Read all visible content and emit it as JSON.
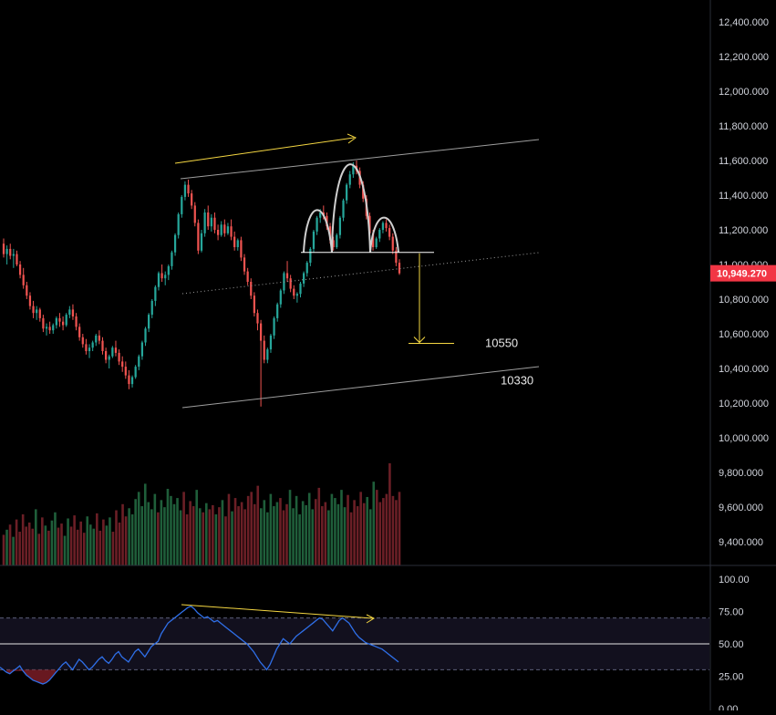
{
  "chart_data": [
    {
      "type": "candlestick",
      "title": "",
      "price_axis": {
        "ticks": [
          "12,400.000",
          "12,200.000",
          "12,000.000",
          "11,800.000",
          "11,600.000",
          "11,400.000",
          "11,200.000",
          "11,000.000",
          "10,800.000",
          "10,600.000",
          "10,400.000",
          "10,200.000",
          "10,000.000",
          "9,800.000",
          "9,600.000",
          "9,400.000"
        ],
        "tick_values": [
          12400,
          12200,
          12000,
          11800,
          11600,
          11400,
          11200,
          11000,
          10800,
          10600,
          10400,
          10200,
          10000,
          9800,
          9600,
          9400
        ],
        "range": [
          9300,
          12500
        ]
      },
      "last_price_label": "10,949.270",
      "last_price": 10949.27,
      "candles_ohlc": [
        [
          11120,
          11150,
          11040,
          11060
        ],
        [
          11060,
          11110,
          11000,
          11090
        ],
        [
          11090,
          11120,
          11030,
          11050
        ],
        [
          11050,
          11090,
          10980,
          11060
        ],
        [
          11060,
          11080,
          10990,
          11000
        ],
        [
          11000,
          11020,
          10920,
          10940
        ],
        [
          10940,
          10980,
          10860,
          10880
        ],
        [
          10880,
          10900,
          10800,
          10820
        ],
        [
          10820,
          10840,
          10740,
          10760
        ],
        [
          10760,
          10790,
          10690,
          10720
        ],
        [
          10720,
          10760,
          10680,
          10740
        ],
        [
          10740,
          10750,
          10670,
          10690
        ],
        [
          10690,
          10710,
          10610,
          10630
        ],
        [
          10630,
          10660,
          10590,
          10640
        ],
        [
          10640,
          10670,
          10600,
          10620
        ],
        [
          10620,
          10660,
          10600,
          10650
        ],
        [
          10650,
          10700,
          10630,
          10690
        ],
        [
          10690,
          10720,
          10640,
          10670
        ],
        [
          10670,
          10700,
          10620,
          10650
        ],
        [
          10650,
          10720,
          10640,
          10710
        ],
        [
          10710,
          10760,
          10690,
          10740
        ],
        [
          10740,
          10770,
          10680,
          10700
        ],
        [
          10700,
          10720,
          10620,
          10640
        ],
        [
          10640,
          10660,
          10560,
          10580
        ],
        [
          10580,
          10600,
          10520,
          10540
        ],
        [
          10540,
          10570,
          10480,
          10500
        ],
        [
          10500,
          10540,
          10460,
          10520
        ],
        [
          10520,
          10560,
          10500,
          10550
        ],
        [
          10550,
          10600,
          10530,
          10590
        ],
        [
          10590,
          10620,
          10540,
          10560
        ],
        [
          10560,
          10580,
          10480,
          10500
        ],
        [
          10500,
          10520,
          10430,
          10450
        ],
        [
          10450,
          10480,
          10400,
          10470
        ],
        [
          10470,
          10530,
          10460,
          10520
        ],
        [
          10520,
          10560,
          10470,
          10490
        ],
        [
          10490,
          10510,
          10420,
          10440
        ],
        [
          10440,
          10470,
          10380,
          10410
        ],
        [
          10410,
          10440,
          10340,
          10360
        ],
        [
          10360,
          10390,
          10280,
          10310
        ],
        [
          10310,
          10360,
          10290,
          10350
        ],
        [
          10350,
          10420,
          10340,
          10410
        ],
        [
          10410,
          10480,
          10390,
          10470
        ],
        [
          10470,
          10560,
          10450,
          10550
        ],
        [
          10550,
          10640,
          10530,
          10630
        ],
        [
          10630,
          10720,
          10610,
          10710
        ],
        [
          10710,
          10800,
          10690,
          10790
        ],
        [
          10790,
          10880,
          10760,
          10870
        ],
        [
          10870,
          10960,
          10850,
          10950
        ],
        [
          10950,
          11000,
          10900,
          10920
        ],
        [
          10920,
          10960,
          10880,
          10940
        ],
        [
          10940,
          11000,
          10910,
          10990
        ],
        [
          10990,
          11080,
          10970,
          11070
        ],
        [
          11070,
          11180,
          11050,
          11170
        ],
        [
          11170,
          11300,
          11150,
          11290
        ],
        [
          11290,
          11400,
          11270,
          11390
        ],
        [
          11390,
          11480,
          11370,
          11460
        ],
        [
          11460,
          11490,
          11390,
          11410
        ],
        [
          11410,
          11430,
          11320,
          11340
        ],
        [
          11340,
          11360,
          11220,
          11240
        ],
        [
          11240,
          11260,
          11060,
          11080
        ],
        [
          11080,
          11200,
          11070,
          11180
        ],
        [
          11180,
          11320,
          11160,
          11300
        ],
        [
          11300,
          11340,
          11200,
          11220
        ],
        [
          11220,
          11290,
          11190,
          11270
        ],
        [
          11270,
          11300,
          11180,
          11200
        ],
        [
          11200,
          11230,
          11140,
          11170
        ],
        [
          11170,
          11250,
          11160,
          11230
        ],
        [
          11230,
          11260,
          11160,
          11180
        ],
        [
          11180,
          11240,
          11170,
          11220
        ],
        [
          11220,
          11260,
          11140,
          11160
        ],
        [
          11160,
          11190,
          11080,
          11100
        ],
        [
          11100,
          11150,
          11080,
          11140
        ],
        [
          11140,
          11160,
          11020,
          11040
        ],
        [
          11040,
          11060,
          10940,
          10960
        ],
        [
          10960,
          10980,
          10880,
          10900
        ],
        [
          10900,
          10920,
          10800,
          10820
        ],
        [
          10820,
          10840,
          10700,
          10720
        ],
        [
          10720,
          10740,
          10620,
          10660
        ],
        [
          10660,
          10680,
          10180,
          10560
        ],
        [
          10560,
          10590,
          10430,
          10450
        ],
        [
          10450,
          10520,
          10430,
          10510
        ],
        [
          10510,
          10600,
          10490,
          10590
        ],
        [
          10590,
          10700,
          10570,
          10690
        ],
        [
          10690,
          10780,
          10670,
          10770
        ],
        [
          10770,
          10860,
          10750,
          10850
        ],
        [
          10850,
          10960,
          10830,
          10950
        ],
        [
          10950,
          11020,
          10900,
          10920
        ],
        [
          10920,
          10940,
          10840,
          10860
        ],
        [
          10860,
          10880,
          10800,
          10820
        ],
        [
          10820,
          10840,
          10780,
          10830
        ],
        [
          10830,
          10900,
          10810,
          10890
        ],
        [
          10890,
          10960,
          10870,
          10950
        ],
        [
          10950,
          11020,
          10930,
          11010
        ],
        [
          11010,
          11100,
          10990,
          11090
        ],
        [
          11090,
          11200,
          11070,
          11190
        ],
        [
          11190,
          11280,
          11170,
          11270
        ],
        [
          11270,
          11320,
          11240,
          11300
        ],
        [
          11300,
          11340,
          11260,
          11280
        ],
        [
          11280,
          11300,
          11200,
          11220
        ],
        [
          11220,
          11240,
          11120,
          11140
        ],
        [
          11140,
          11160,
          11080,
          11100
        ],
        [
          11100,
          11180,
          11090,
          11170
        ],
        [
          11170,
          11280,
          11150,
          11270
        ],
        [
          11270,
          11380,
          11250,
          11370
        ],
        [
          11370,
          11470,
          11350,
          11460
        ],
        [
          11460,
          11540,
          11440,
          11520
        ],
        [
          11520,
          11590,
          11500,
          11570
        ],
        [
          11570,
          11600,
          11520,
          11540
        ],
        [
          11540,
          11560,
          11440,
          11460
        ],
        [
          11460,
          11480,
          11360,
          11380
        ],
        [
          11380,
          11400,
          11260,
          11280
        ],
        [
          11280,
          11300,
          11160,
          11180
        ],
        [
          11180,
          11200,
          11080,
          11100
        ],
        [
          11100,
          11160,
          11090,
          11150
        ],
        [
          11150,
          11210,
          11130,
          11200
        ],
        [
          11200,
          11250,
          11180,
          11240
        ],
        [
          11240,
          11260,
          11190,
          11210
        ],
        [
          11210,
          11230,
          11140,
          11160
        ],
        [
          11160,
          11180,
          11060,
          11080
        ],
        [
          11080,
          11100,
          10990,
          11010
        ],
        [
          11010,
          11030,
          10940,
          10949.27
        ]
      ],
      "volume_relative": [
        0.3,
        0.35,
        0.4,
        0.28,
        0.45,
        0.33,
        0.5,
        0.38,
        0.42,
        0.36,
        0.55,
        0.31,
        0.47,
        0.39,
        0.34,
        0.44,
        0.52,
        0.37,
        0.41,
        0.29,
        0.46,
        0.38,
        0.49,
        0.35,
        0.43,
        0.32,
        0.48,
        0.4,
        0.36,
        0.51,
        0.34,
        0.45,
        0.39,
        0.47,
        0.33,
        0.54,
        0.42,
        0.6,
        0.48,
        0.56,
        0.5,
        0.65,
        0.72,
        0.58,
        0.8,
        0.62,
        0.55,
        0.7,
        0.52,
        0.64,
        0.57,
        0.75,
        0.68,
        0.6,
        0.66,
        0.54,
        0.72,
        0.5,
        0.63,
        0.58,
        0.74,
        0.56,
        0.52,
        0.61,
        0.55,
        0.59,
        0.5,
        0.57,
        0.64,
        0.48,
        0.7,
        0.53,
        0.66,
        0.58,
        0.62,
        0.55,
        0.68,
        0.72,
        0.6,
        0.78,
        0.56,
        0.64,
        0.52,
        0.7,
        0.58,
        0.62,
        0.66,
        0.54,
        0.6,
        0.74,
        0.56,
        0.68,
        0.5,
        0.63,
        0.59,
        0.71,
        0.55,
        0.65,
        0.76,
        0.58,
        0.62,
        0.54,
        0.7,
        0.66,
        0.6,
        0.74,
        0.57,
        0.69,
        0.52,
        0.64,
        0.58,
        0.72,
        0.61,
        0.67,
        0.55,
        0.82,
        0.74,
        0.62,
        0.66,
        0.7,
        1.0,
        0.68,
        0.64,
        0.72
      ],
      "annotations": {
        "target_label_1": "10550",
        "target_label_2": "10330",
        "target_value_1": 10550,
        "target_value_2": 10330,
        "neckline_value": 11070
      },
      "colors": {
        "up": "#26a69a",
        "down": "#ef5350",
        "trend_arrow": "#f5d742",
        "channel_line": "#9e9e9e",
        "pattern_arc": "#cfcfcf",
        "price_tag_bg": "#f23645"
      }
    },
    {
      "type": "line",
      "title": "",
      "axis": {
        "ticks": [
          "100.00",
          "75.00",
          "50.00",
          "25.00",
          "0.00"
        ],
        "tick_values": [
          100,
          75,
          50,
          25,
          0
        ],
        "range": [
          0,
          100
        ]
      },
      "band": [
        30,
        70
      ],
      "midline": 50,
      "values": [
        32,
        30,
        28,
        27,
        29,
        31,
        33,
        29,
        26,
        24,
        22,
        21,
        20,
        19,
        20,
        22,
        25,
        28,
        31,
        34,
        36,
        33,
        30,
        34,
        38,
        36,
        33,
        30,
        32,
        35,
        38,
        40,
        37,
        35,
        38,
        42,
        44,
        40,
        38,
        36,
        40,
        44,
        46,
        43,
        40,
        44,
        48,
        50,
        52,
        58,
        62,
        66,
        68,
        70,
        72,
        74,
        76,
        78,
        79,
        77,
        74,
        72,
        70,
        71,
        69,
        67,
        68,
        66,
        64,
        62,
        60,
        58,
        56,
        54,
        52,
        50,
        47,
        44,
        40,
        36,
        33,
        30,
        34,
        40,
        46,
        50,
        54,
        52,
        50,
        53,
        56,
        58,
        60,
        62,
        64,
        66,
        68,
        70,
        69,
        66,
        63,
        60,
        64,
        68,
        70,
        68,
        66,
        62,
        58,
        55,
        53,
        51,
        50,
        49,
        48,
        47,
        46,
        44,
        42,
        40,
        38,
        36
      ],
      "divergence_arrow": "bearish",
      "colors": {
        "line": "#2f6fe8",
        "band_fill": "#12101e",
        "band_border": "#5b5f7a",
        "midline": "#e6e6e6",
        "oversold_fill": "#7a1c26",
        "arrow": "#f5d742"
      }
    }
  ]
}
